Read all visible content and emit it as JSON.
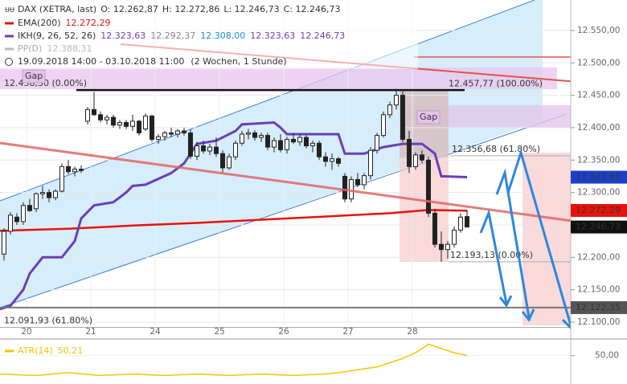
{
  "header": {
    "instrument": "DAX (XETRA, last)",
    "ohlc": [
      "O: 12.262,87",
      "H: 12.272,86",
      "L: 12.246,73",
      "C: 12.246,73"
    ],
    "range": "19.09.2018 14:00 - 03.10.2018 11:00",
    "period": "(2 Wochen, 1 Stunde)"
  },
  "chart_data": {
    "type": "candlestick",
    "xlim": [
      -0.625,
      88.125
    ],
    "xticks": [
      {
        "value": 3.5,
        "label": "20"
      },
      {
        "value": 13.5,
        "label": "21"
      },
      {
        "value": 23.5,
        "label": "24"
      },
      {
        "value": 33.5,
        "label": "25"
      },
      {
        "value": 43.5,
        "label": "26"
      },
      {
        "value": 53.5,
        "label": "27"
      },
      {
        "value": 63.5,
        "label": "28"
      }
    ],
    "ylim": [
      12095,
      12597
    ],
    "yticks": [
      {
        "value": 12100,
        "label": "12.100,00"
      },
      {
        "value": 12150,
        "label": "12.150,00"
      },
      {
        "value": 12200,
        "label": "12.200,00"
      },
      {
        "value": 12250,
        "label": "12.250,00"
      },
      {
        "value": 12300,
        "label": "12.300,00"
      },
      {
        "value": 12350,
        "label": "12.350,00"
      },
      {
        "value": 12400,
        "label": "12.400,00"
      },
      {
        "value": 12450,
        "label": "12.450,00"
      },
      {
        "value": 12500,
        "label": "12.500,00"
      },
      {
        "value": 12550,
        "label": "12.550,00"
      }
    ],
    "grid": true,
    "up_color": "#ffffff",
    "down_color": "#222222",
    "open": [
      12205,
      12240,
      12262,
      12255,
      12280,
      12275,
      12298,
      12300,
      12292,
      12302,
      12340,
      12332,
      12336,
      12410,
      12428,
      12420,
      12412,
      12416,
      12404,
      12408,
      12402,
      12410,
      12398,
      12418,
      12382,
      12386,
      12392,
      12390,
      12395,
      12392,
      12356,
      12372,
      12364,
      12370,
      12360,
      12338,
      12355,
      12376,
      12390,
      12392,
      12385,
      12388,
      12370,
      12380,
      12366,
      12382,
      12378,
      12385,
      12372,
      12376,
      12355,
      12348,
      12352,
      12325,
      12290,
      12320,
      12312,
      12326,
      12365,
      12388,
      12420,
      12435,
      12450,
      12382,
      12340,
      12358,
      12350,
      12268,
      12220,
      12212,
      12220,
      12242,
      12262.87
    ],
    "high": [
      12245,
      12270,
      12268,
      12285,
      12290,
      12300,
      12310,
      12305,
      12305,
      12345,
      12350,
      12340,
      12342,
      12432,
      12455,
      12425,
      12420,
      12420,
      12412,
      12412,
      12420,
      12412,
      12422,
      12420,
      12390,
      12395,
      12400,
      12398,
      12400,
      12398,
      12378,
      12380,
      12375,
      12385,
      12365,
      12360,
      12380,
      12395,
      12398,
      12396,
      12392,
      12392,
      12385,
      12390,
      12386,
      12392,
      12390,
      12388,
      12380,
      12380,
      12362,
      12360,
      12355,
      12330,
      12325,
      12330,
      12330,
      12370,
      12392,
      12425,
      12440,
      12460,
      12456,
      12395,
      12362,
      12365,
      12355,
      12275,
      12240,
      12225,
      12248,
      12268,
      12272.86
    ],
    "low": [
      12195,
      12235,
      12250,
      12250,
      12270,
      12270,
      12290,
      12285,
      12288,
      12300,
      12328,
      12325,
      12330,
      12405,
      12418,
      12408,
      12405,
      12400,
      12398,
      12398,
      12395,
      12388,
      12395,
      12378,
      12375,
      12380,
      12385,
      12385,
      12388,
      12352,
      12350,
      12360,
      12358,
      12355,
      12330,
      12335,
      12350,
      12372,
      12382,
      12380,
      12378,
      12365,
      12362,
      12362,
      12360,
      12375,
      12372,
      12368,
      12362,
      12350,
      12340,
      12335,
      12340,
      12285,
      12285,
      12308,
      12305,
      12320,
      12360,
      12385,
      12415,
      12428,
      12378,
      12330,
      12335,
      12345,
      12262,
      12215,
      12193,
      12198,
      12215,
      12238,
      12246.73
    ],
    "close": [
      12240,
      12265,
      12255,
      12280,
      12272,
      12298,
      12300,
      12292,
      12302,
      12340,
      12332,
      12336,
      12334,
      12428,
      12420,
      12412,
      12416,
      12404,
      12408,
      12402,
      12410,
      12392,
      12418,
      12382,
      12386,
      12392,
      12390,
      12395,
      12392,
      12356,
      12372,
      12364,
      12370,
      12360,
      12338,
      12355,
      12376,
      12390,
      12392,
      12385,
      12388,
      12370,
      12380,
      12366,
      12382,
      12378,
      12385,
      12372,
      12376,
      12355,
      12348,
      12352,
      12345,
      12290,
      12320,
      12312,
      12326,
      12365,
      12388,
      12420,
      12435,
      12450,
      12382,
      12340,
      12358,
      12350,
      12268,
      12220,
      12212,
      12220,
      12242,
      12262,
      12246.73
    ],
    "series": [
      {
        "name": "EMA(200)",
        "color": "#e8120c",
        "legend_values": [
          "12.272,29"
        ],
        "legend_colors": [
          "#e8120c"
        ],
        "x": [
          -0.625,
          10,
          20,
          30,
          40,
          50,
          60,
          66,
          72
        ],
        "values": [
          12241,
          12244,
          12249,
          12253,
          12258,
          12263,
          12268,
          12273,
          12272
        ]
      },
      {
        "name": "IKH(9, 26, 52, 26)",
        "color": "#6a3fb5",
        "legend_values": [
          "12.323,63",
          "12.292,37",
          "12.308,00",
          "12.323,63",
          "12.246,73"
        ],
        "legend_colors": [
          "#6a3fb5",
          "#888888",
          "#1a8fd0",
          "#6a3fb5",
          "#6a3fb5"
        ],
        "x": [
          -0.625,
          1,
          3,
          4,
          6,
          9,
          11,
          12,
          14,
          17,
          19,
          20,
          22,
          26,
          28,
          30,
          33,
          36,
          37,
          42,
          43,
          44,
          52,
          53,
          56,
          59,
          62,
          65,
          67,
          68,
          72
        ],
        "values": [
          12120,
          12125,
          12150,
          12175,
          12200,
          12200,
          12225,
          12260,
          12280,
          12285,
          12300,
          12310,
          12312,
          12330,
          12345,
          12375,
          12380,
          12395,
          12405,
          12408,
          12400,
          12390,
          12390,
          12360,
          12360,
          12370,
          12375,
          12375,
          12360,
          12325,
          12323.63
        ]
      },
      {
        "name": "PP(D)",
        "color": "#bbbbbb",
        "legend_values": [
          "12.388,31"
        ],
        "legend_colors": [
          "#bbbbbb"
        ]
      }
    ],
    "levels": [
      {
        "value": 12458.3,
        "label": "12.458,30 (0.00%)"
      },
      {
        "value": 12457.77,
        "label": "12.457,77 (100.00%)"
      },
      {
        "value": 12356.68,
        "label": "12.356,68 (61.80%)"
      },
      {
        "value": 12193.13,
        "label": "12.193,13 (0.00%)"
      },
      {
        "value": 12091.93,
        "label": "12.091,93 (61.80%)"
      }
    ],
    "gap_labels": [
      "Gap",
      "Gap"
    ],
    "price_tags": [
      {
        "value": 12323.63,
        "label": "12.323,63",
        "color": "#1a3fc9"
      },
      {
        "value": 12272.29,
        "label": "12.272,29",
        "color": "#e8120c"
      },
      {
        "value": 12246.73,
        "label": "12.246,73",
        "color": "#111111"
      },
      {
        "value": 12122.35,
        "label": "12.122,35",
        "color": "#555555"
      }
    ],
    "atr": {
      "name": "ATR(14)",
      "value_label": "50,21",
      "color": "#f5c400",
      "ylim": [
        30,
        60
      ],
      "yticks": [
        {
          "value": 50,
          "label": "50,00"
        }
      ],
      "x": [
        -0.625,
        5,
        10,
        15,
        20,
        25,
        30,
        35,
        40,
        45,
        50,
        52,
        55,
        58,
        60,
        62,
        64,
        66,
        68,
        70,
        72
      ],
      "values": [
        37,
        36,
        38,
        36,
        37,
        36,
        37,
        36,
        37,
        36,
        37,
        38,
        40,
        42,
        45,
        48,
        52,
        58,
        55,
        52,
        50.21
      ]
    }
  }
}
